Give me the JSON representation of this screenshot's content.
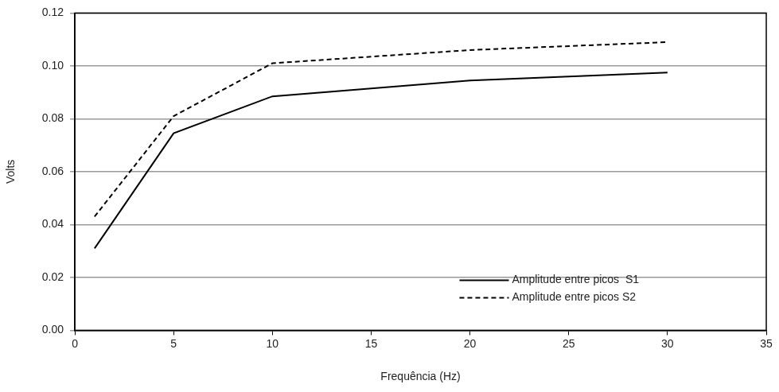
{
  "chart_data": {
    "type": "line",
    "x_label": "Frequência (Hz)",
    "y_label": "Volts",
    "x": [
      1,
      5,
      10,
      20,
      30
    ],
    "series": [
      {
        "name": "Amplitude entre picos  S1",
        "color": "#000000",
        "line_style": "solid",
        "values": [
          0.031,
          0.0745,
          0.0885,
          0.0945,
          0.0975
        ]
      },
      {
        "name": "Amplitude entre picos S2",
        "color": "#000000",
        "line_style": "dashed",
        "values": [
          0.043,
          0.081,
          0.101,
          0.106,
          0.109
        ]
      }
    ],
    "xlim": [
      0,
      35
    ],
    "xticks": [
      0,
      5,
      10,
      15,
      20,
      25,
      30,
      35
    ],
    "ylim": [
      0,
      0.12
    ],
    "yticks": [
      {
        "value": 0,
        "label": "0.00"
      },
      0.02,
      0.04,
      0.06,
      0.08,
      {
        "value": 0.1,
        "label": "0.10"
      },
      0.12
    ],
    "grid": true,
    "legend": "lower right"
  }
}
